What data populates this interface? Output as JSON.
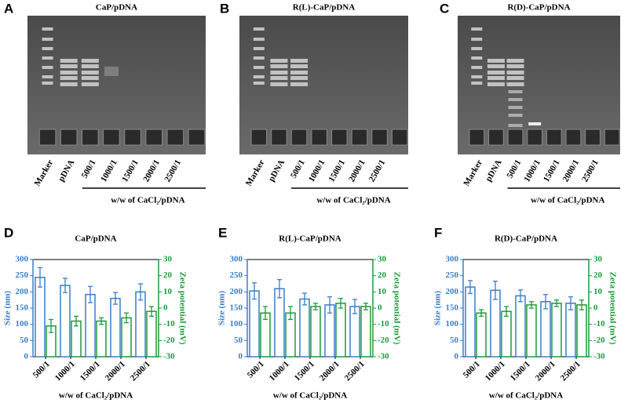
{
  "gels": [
    {
      "letter": "A",
      "title": "CaP/pDNA",
      "lanes": [
        "Marker",
        "pDNA",
        "500/1",
        "1000/1",
        "1500/1",
        "2000/1",
        "2500/1"
      ],
      "xlabel": "w/w of CaCl₂/pDNA"
    },
    {
      "letter": "B",
      "title": "R(L)-CaP/pDNA",
      "lanes": [
        "Marker",
        "pDNA",
        "500/1",
        "1000/1",
        "1500/1",
        "2000/1",
        "2500/1"
      ],
      "xlabel": "w/w of CaCl₂/pDNA"
    },
    {
      "letter": "C",
      "title": "R(D)-CaP/pDNA",
      "lanes": [
        "Marker",
        "pDNA",
        "500/1",
        "1000/1",
        "1500/1",
        "2000/1",
        "2500/1"
      ],
      "xlabel": "w/w of CaCl₂/pDNA"
    }
  ],
  "chart_data": [
    {
      "type": "bar",
      "letter": "D",
      "title": "CaP/pDNA",
      "categories": [
        "500/1",
        "1000/1",
        "1500/1",
        "2000/1",
        "2500/1"
      ],
      "xlabel": "w/w of CaCl₂/pDNA",
      "ylabel": "Size (nm)",
      "y2label": "Zeta potential (mV)",
      "ylim": [
        0,
        300
      ],
      "yticks": [
        0,
        50,
        100,
        150,
        200,
        250,
        300
      ],
      "y2lim": [
        -30,
        30
      ],
      "y2ticks": [
        -30,
        -20,
        -10,
        0,
        10,
        20,
        30
      ],
      "series": [
        {
          "color": "#3a7dc9",
          "values": [
            245,
            220,
            192,
            180,
            200
          ],
          "errors": [
            30,
            22,
            25,
            18,
            25
          ]
        },
        {
          "color": "#1a9b3a",
          "axis": "y2",
          "values": [
            -11,
            -8,
            -8,
            -6,
            -2
          ],
          "errors": [
            4,
            3,
            2,
            3,
            3
          ]
        }
      ]
    },
    {
      "type": "bar",
      "letter": "E",
      "title": "R(L)-CaP/pDNA",
      "categories": [
        "500/1",
        "1000/1",
        "1500/1",
        "2000/1",
        "2500/1"
      ],
      "xlabel": "w/w of CaCl₂/pDNA",
      "ylabel": "Size (nm)",
      "y2label": "Zeta potential (mV)",
      "ylim": [
        0,
        300
      ],
      "yticks": [
        0,
        50,
        100,
        150,
        200,
        250,
        300
      ],
      "y2lim": [
        -30,
        30
      ],
      "y2ticks": [
        -30,
        -20,
        -10,
        0,
        10,
        20,
        30
      ],
      "series": [
        {
          "color": "#3a7dc9",
          "values": [
            203,
            210,
            178,
            160,
            155
          ],
          "errors": [
            25,
            28,
            18,
            25,
            22
          ]
        },
        {
          "color": "#1a9b3a",
          "axis": "y2",
          "values": [
            -3,
            -3,
            1,
            3,
            1
          ],
          "errors": [
            4,
            4,
            2,
            3,
            2
          ]
        }
      ]
    },
    {
      "type": "bar",
      "letter": "F",
      "title": "R(D)-CaP/pDNA",
      "categories": [
        "500/1",
        "1000/1",
        "1500/1",
        "2000/1",
        "2500/1"
      ],
      "xlabel": "w/w of CaCl₂/pDNA",
      "ylabel": "Size (nm)",
      "y2label": "Zeta potential (mV)",
      "ylim": [
        0,
        300
      ],
      "yticks": [
        0,
        50,
        100,
        150,
        200,
        250,
        300
      ],
      "y2lim": [
        -30,
        30
      ],
      "y2ticks": [
        -30,
        -20,
        -10,
        0,
        10,
        20,
        30
      ],
      "series": [
        {
          "color": "#3a7dc9",
          "values": [
            215,
            205,
            188,
            170,
            165
          ],
          "errors": [
            20,
            28,
            18,
            22,
            20
          ]
        },
        {
          "color": "#1a9b3a",
          "axis": "y2",
          "values": [
            -3,
            -2,
            2,
            3,
            2
          ],
          "errors": [
            2,
            3,
            2,
            2,
            3
          ]
        }
      ]
    }
  ]
}
